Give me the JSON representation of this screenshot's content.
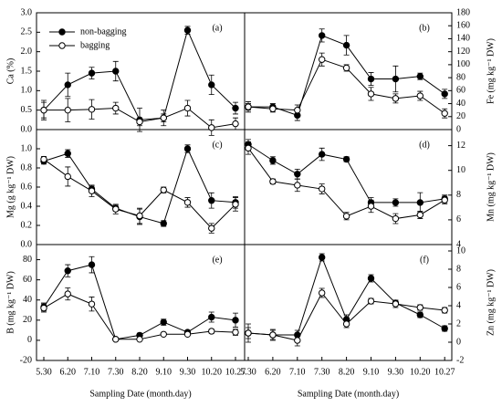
{
  "chart_data": [
    {
      "type": "line",
      "panel_label": "(a)",
      "ylabel": "Ca (%)",
      "axis_side": "left",
      "legend": "upper left",
      "ylim": [
        0,
        3
      ],
      "yticks": [
        {
          "value": 0,
          "label": "0.0"
        },
        0.5,
        {
          "value": 1,
          "label": "1.0"
        },
        1.5,
        {
          "value": 2,
          "label": "2.0"
        },
        2.5,
        {
          "value": 3,
          "label": "3.0"
        }
      ],
      "series": [
        {
          "name": "non-bagging",
          "color": "#000000",
          "fill": "#000000",
          "values": [
            0.5,
            1.15,
            1.45,
            1.5,
            0.25,
            0.3,
            2.55,
            1.15,
            0.55
          ],
          "errors": [
            0.25,
            0.3,
            0.15,
            0.25,
            0.3,
            0.2,
            0.1,
            0.25,
            0.15
          ]
        },
        {
          "name": "bagging",
          "color": "#000000",
          "fill": "#ffffff",
          "values": [
            0.5,
            0.5,
            0.52,
            0.55,
            0.2,
            0.3,
            0.55,
            0.05,
            0.15
          ],
          "errors": [
            0.2,
            0.3,
            0.25,
            0.15,
            0.1,
            0.1,
            0.2,
            0.2,
            0.15
          ]
        }
      ]
    },
    {
      "type": "line",
      "panel_label": "(b)",
      "ylabel": "Fe (mg kg⁻¹ DW)",
      "axis_side": "right",
      "ylim": [
        0,
        180
      ],
      "yticks": [
        0,
        20,
        40,
        60,
        80,
        100,
        120,
        140,
        160,
        180
      ],
      "series": [
        {
          "color": "#000000",
          "fill": "#000000",
          "values": [
            35,
            35,
            22,
            145,
            130,
            78,
            78,
            82,
            55
          ],
          "errors": [
            8,
            5,
            8,
            10,
            15,
            10,
            20,
            5,
            7
          ]
        },
        {
          "color": "#000000",
          "fill": "#ffffff",
          "values": [
            35,
            32,
            30,
            108,
            95,
            55,
            48,
            52,
            25
          ],
          "errors": [
            5,
            5,
            8,
            10,
            5,
            10,
            7,
            7,
            7
          ]
        }
      ]
    },
    {
      "type": "line",
      "panel_label": "(c)",
      "ylabel": "Mg (g kg⁻¹ DW)",
      "axis_side": "left",
      "ylim": [
        0,
        1.2
      ],
      "yticks": [
        {
          "value": 0,
          "label": "0.0"
        },
        0.2,
        0.4,
        0.6,
        0.8,
        {
          "value": 1,
          "label": "1.0"
        }
      ],
      "series": [
        {
          "color": "#000000",
          "fill": "#000000",
          "values": [
            0.87,
            0.95,
            0.58,
            0.38,
            0.29,
            0.22,
            1.0,
            0.46,
            0.44
          ],
          "errors": [
            0.03,
            0.04,
            0.03,
            0.03,
            0.08,
            0.03,
            0.04,
            0.08,
            0.06
          ]
        },
        {
          "color": "#000000",
          "fill": "#ffffff",
          "values": [
            0.89,
            0.71,
            0.56,
            0.37,
            0.3,
            0.57,
            0.44,
            0.17,
            0.42
          ],
          "errors": [
            0.03,
            0.1,
            0.06,
            0.05,
            0.08,
            0.03,
            0.05,
            0.05,
            0.07
          ]
        }
      ]
    },
    {
      "type": "line",
      "panel_label": "(d)",
      "ylabel": "Mn (mg kg⁻¹ DW)",
      "axis_side": "right",
      "ylim": [
        4,
        13.3
      ],
      "yticks": [
        4,
        6,
        8,
        10,
        12
      ],
      "series": [
        {
          "color": "#000000",
          "fill": "#000000",
          "values": [
            12.1,
            10.8,
            9.7,
            11.3,
            10.9,
            7.4,
            7.4,
            7.4,
            7.7
          ],
          "errors": [
            0.4,
            0.3,
            0.4,
            0.5,
            0.2,
            0.4,
            0.3,
            0.8,
            0.3
          ]
        },
        {
          "color": "#000000",
          "fill": "#ffffff",
          "values": [
            11.8,
            9.1,
            8.8,
            8.5,
            6.3,
            7.1,
            6.1,
            6.4,
            7.6
          ],
          "errors": [
            0.5,
            0.2,
            0.5,
            0.4,
            0.3,
            0.5,
            0.4,
            0.3,
            0.3
          ]
        }
      ]
    },
    {
      "type": "line",
      "panel_label": "(e)",
      "ylabel": "B (mg kg⁻¹ DW)",
      "axis_side": "left",
      "xlabel": "Sampling Date (month.day)",
      "categories": [
        "5.30",
        "6.20",
        "7.10",
        "7.30",
        "8.20",
        "9.10",
        "9.30",
        "10.20",
        "10.27"
      ],
      "ylim": [
        -20,
        95
      ],
      "yticks": [
        -20,
        0,
        20,
        40,
        60,
        80
      ],
      "series": [
        {
          "color": "#000000",
          "fill": "#000000",
          "values": [
            33,
            69,
            75,
            1,
            5,
            18,
            8,
            23,
            20
          ],
          "errors": [
            4,
            6,
            8,
            1,
            2,
            3,
            2,
            5,
            7
          ]
        },
        {
          "color": "#000000",
          "fill": "#ffffff",
          "values": [
            32,
            46,
            36,
            1,
            1,
            6,
            6,
            9,
            8
          ],
          "errors": [
            4,
            6,
            7,
            1,
            1,
            1,
            1,
            2,
            3
          ]
        }
      ]
    },
    {
      "type": "line",
      "panel_label": "(f)",
      "ylabel": "Zn (mg kg⁻¹ DW)",
      "axis_side": "right",
      "xlabel": "Sampling Date (month.day)",
      "categories": [
        "5.30",
        "6.20",
        "7.10",
        "7.30",
        "8.20",
        "9.10",
        "9.30",
        "10.20",
        "10.27"
      ],
      "ylim": [
        -2,
        10.7
      ],
      "yticks": [
        -2,
        0,
        2,
        4,
        6,
        8,
        10
      ],
      "series": [
        {
          "color": "#000000",
          "fill": "#000000",
          "values": [
            1,
            0.8,
            0.8,
            9.3,
            2.5,
            7,
            4.3,
            3,
            1.5
          ],
          "errors": [
            0.6,
            0.5,
            0.5,
            0.4,
            0.5,
            0.4,
            0.3,
            0.3,
            0.3
          ]
        },
        {
          "color": "#000000",
          "fill": "#ffffff",
          "values": [
            1,
            0.8,
            0.2,
            5.4,
            2,
            4.5,
            4.2,
            3.8,
            3.5
          ],
          "errors": [
            1,
            0.6,
            0.6,
            0.5,
            0.4,
            0.3,
            0.4,
            0.3,
            0.3
          ]
        }
      ]
    }
  ]
}
